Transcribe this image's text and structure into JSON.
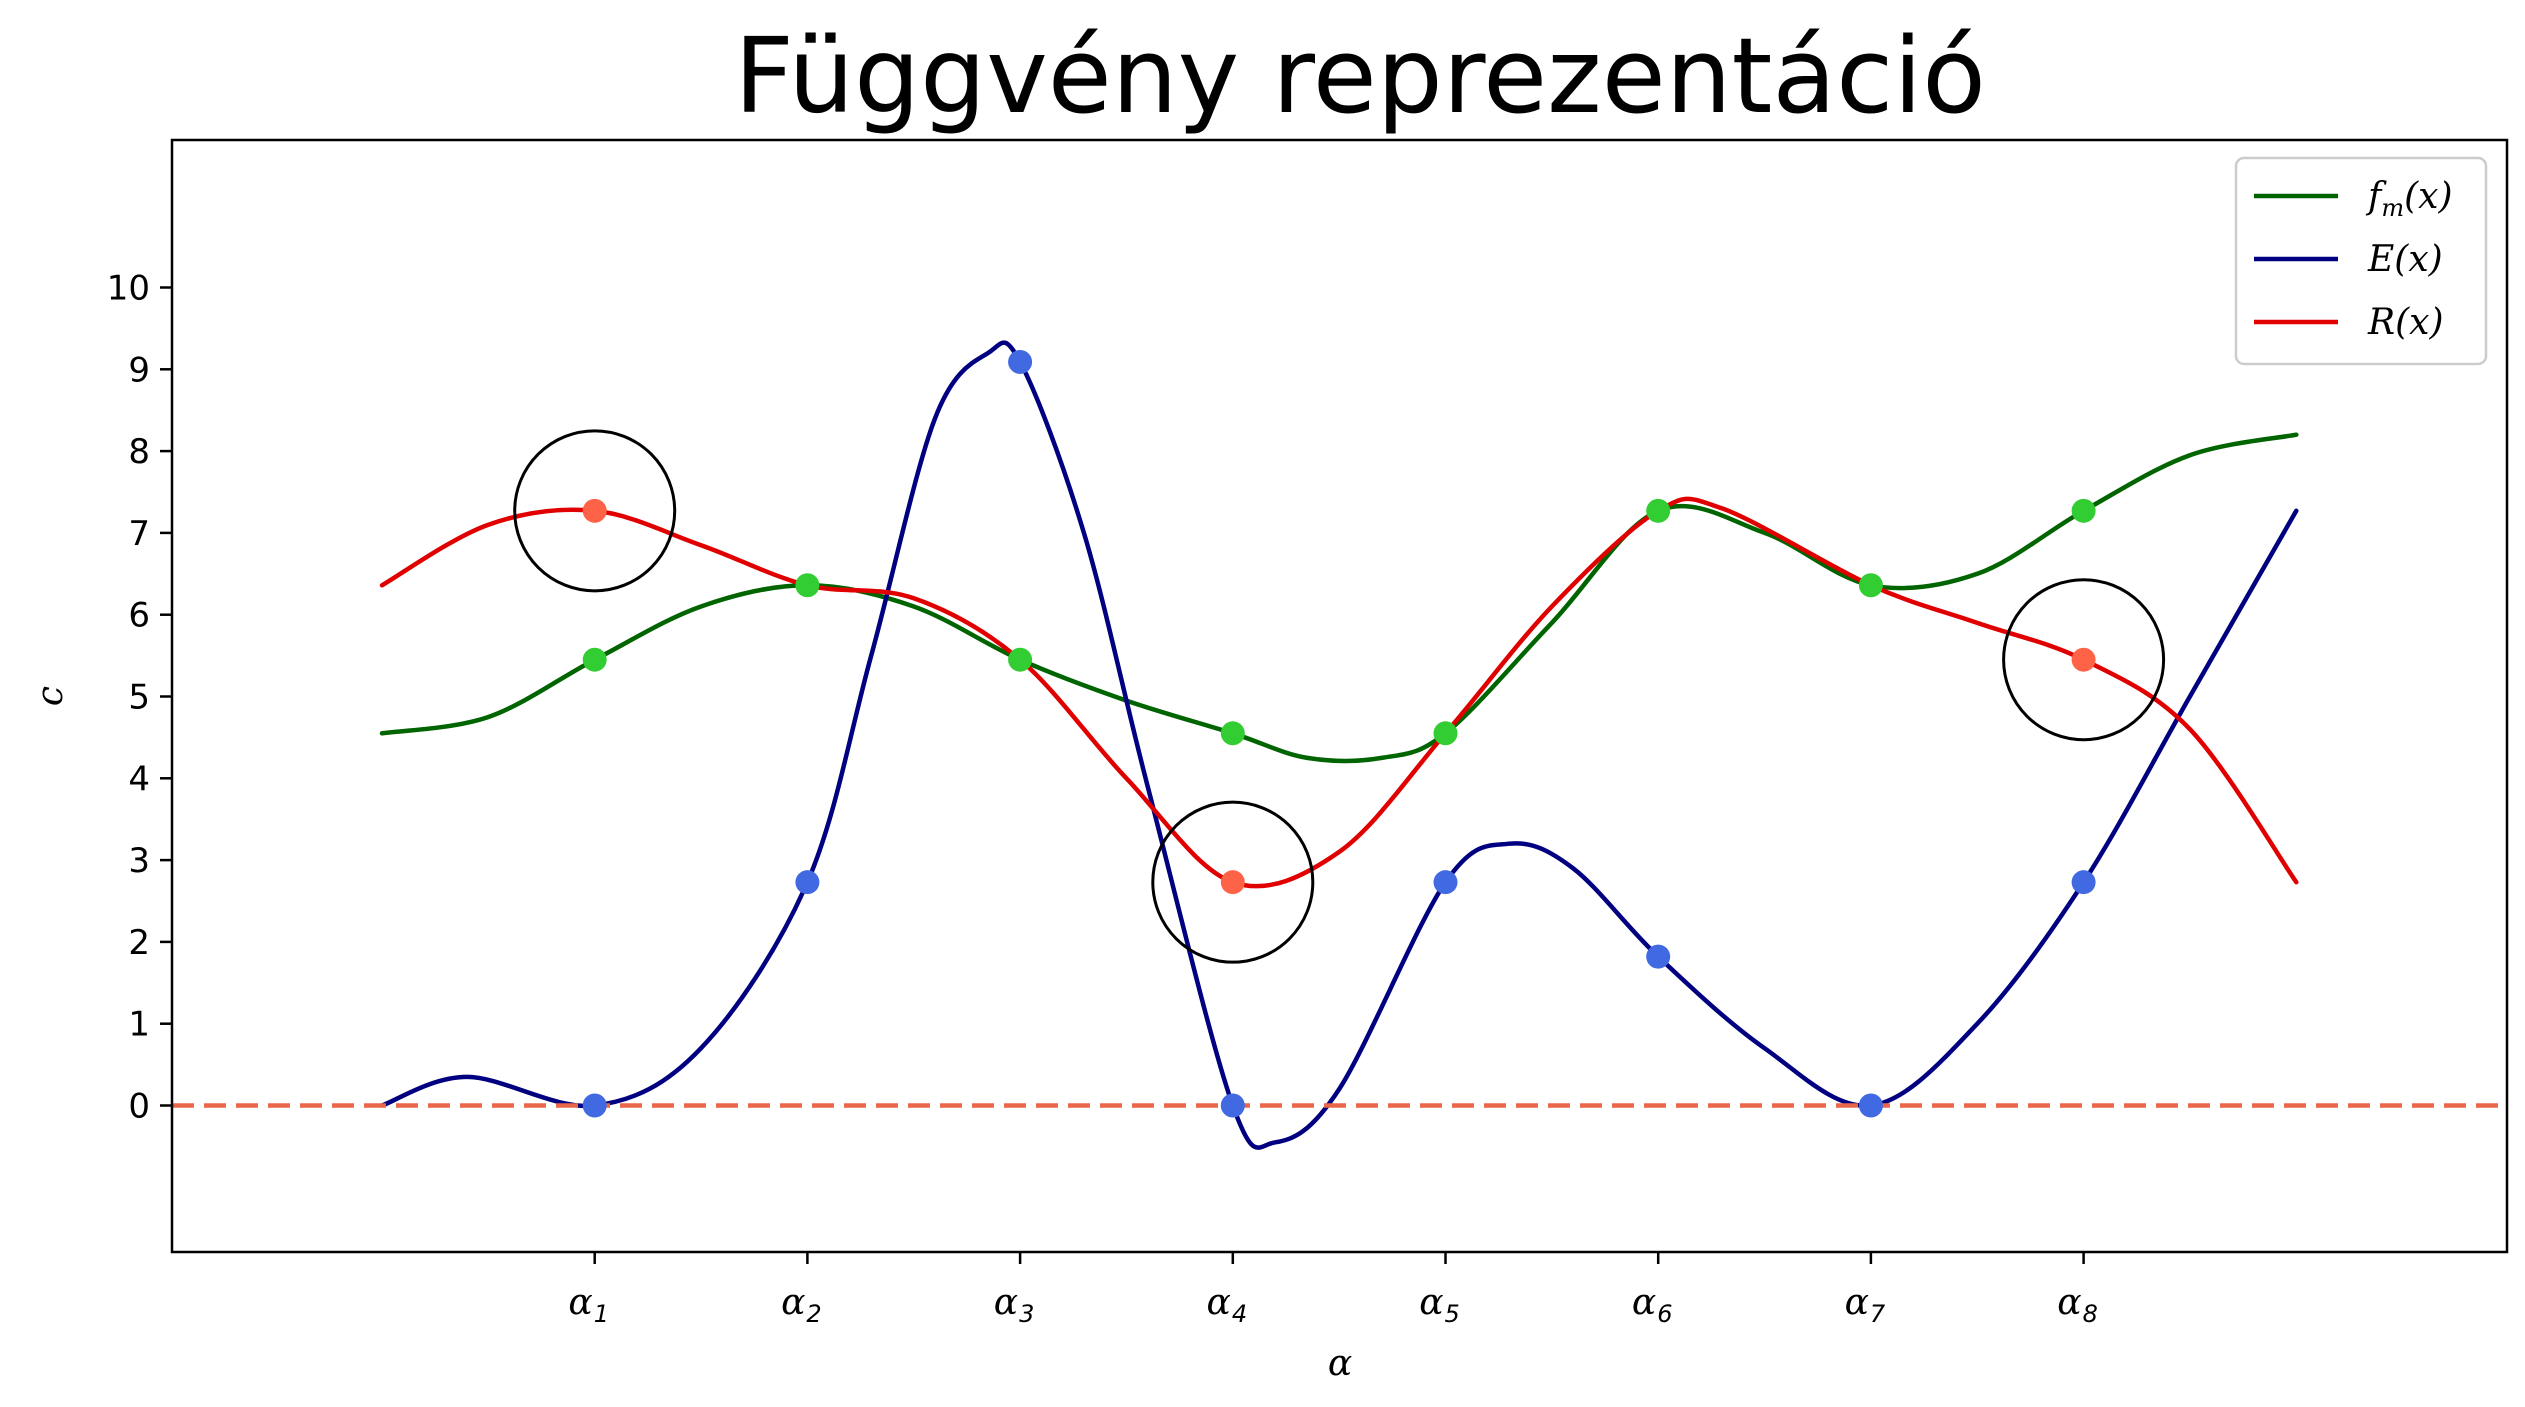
{
  "chart_data": {
    "type": "line",
    "title": "Függvény reprezentáció",
    "xlabel": "α",
    "ylabel": "c",
    "xlim": [
      0,
      10
    ],
    "ylim": [
      -1.8,
      11.8
    ],
    "xticks": [
      {
        "x": 1,
        "symbol": "α",
        "sub": "1"
      },
      {
        "x": 2,
        "symbol": "α",
        "sub": "2"
      },
      {
        "x": 3,
        "symbol": "α",
        "sub": "3"
      },
      {
        "x": 4,
        "symbol": "α",
        "sub": "4"
      },
      {
        "x": 5,
        "symbol": "α",
        "sub": "5"
      },
      {
        "x": 6,
        "symbol": "α",
        "sub": "6"
      },
      {
        "x": 7,
        "symbol": "α",
        "sub": "7"
      },
      {
        "x": 8,
        "symbol": "α",
        "sub": "8"
      }
    ],
    "yticks": [
      "0",
      "1",
      "2",
      "3",
      "4",
      "5",
      "6",
      "7",
      "8",
      "9",
      "10"
    ],
    "grid": false,
    "legend_position": "top-right",
    "series": [
      {
        "name": "f_m(x)",
        "label_main": "f",
        "label_sub": "m",
        "label_tail": "(x)",
        "color": "#006400",
        "marker_color": "#32cd32",
        "curve": [
          [
            0,
            4.55
          ],
          [
            0.5,
            4.75
          ],
          [
            1,
            5.45
          ],
          [
            1.5,
            6.1
          ],
          [
            2,
            6.36
          ],
          [
            2.5,
            6.1
          ],
          [
            3,
            5.45
          ],
          [
            3.5,
            4.95
          ],
          [
            4,
            4.55
          ],
          [
            4.35,
            4.25
          ],
          [
            4.7,
            4.25
          ],
          [
            5,
            4.55
          ],
          [
            5.5,
            5.9
          ],
          [
            6,
            7.27
          ],
          [
            6.5,
            7.0
          ],
          [
            7,
            6.36
          ],
          [
            7.5,
            6.5
          ],
          [
            8,
            7.27
          ],
          [
            8.5,
            7.95
          ],
          [
            9,
            8.2
          ]
        ],
        "markers": [
          [
            1,
            5.45
          ],
          [
            2,
            6.36
          ],
          [
            3,
            5.45
          ],
          [
            4,
            4.55
          ],
          [
            5,
            4.55
          ],
          [
            6,
            7.27
          ],
          [
            7,
            6.36
          ],
          [
            8,
            7.27
          ]
        ]
      },
      {
        "name": "E(x)",
        "label_main": "E",
        "label_sub": "",
        "label_tail": "(x)",
        "color": "#000080",
        "marker_color": "#4169e1",
        "curve": [
          [
            0,
            0
          ],
          [
            0.4,
            0.35
          ],
          [
            1,
            0
          ],
          [
            1.5,
            0.7
          ],
          [
            2,
            2.73
          ],
          [
            2.3,
            5.5
          ],
          [
            2.6,
            8.4
          ],
          [
            2.85,
            9.2
          ],
          [
            3,
            9.09
          ],
          [
            3.3,
            7.0
          ],
          [
            3.6,
            3.9
          ],
          [
            4,
            0
          ],
          [
            4.2,
            -0.45
          ],
          [
            4.5,
            0.2
          ],
          [
            5,
            2.73
          ],
          [
            5.3,
            3.2
          ],
          [
            5.6,
            2.9
          ],
          [
            6,
            1.82
          ],
          [
            6.5,
            0.7
          ],
          [
            7,
            0
          ],
          [
            7.5,
            1.0
          ],
          [
            8,
            2.73
          ],
          [
            8.5,
            5.0
          ],
          [
            9,
            7.27
          ]
        ],
        "markers": [
          [
            1,
            0
          ],
          [
            2,
            2.73
          ],
          [
            3,
            9.09
          ],
          [
            4,
            0
          ],
          [
            5,
            2.73
          ],
          [
            6,
            1.82
          ],
          [
            7,
            0
          ],
          [
            8,
            2.73
          ]
        ]
      },
      {
        "name": "R(x)",
        "label_main": "R",
        "label_sub": "",
        "label_tail": "(x)",
        "color": "#e00000",
        "marker_color": "#ff6347",
        "curve": [
          [
            0,
            6.36
          ],
          [
            0.5,
            7.1
          ],
          [
            1,
            7.27
          ],
          [
            1.5,
            6.85
          ],
          [
            2,
            6.36
          ],
          [
            2.5,
            6.2
          ],
          [
            3,
            5.45
          ],
          [
            3.5,
            4.0
          ],
          [
            4,
            2.73
          ],
          [
            4.5,
            3.1
          ],
          [
            5,
            4.55
          ],
          [
            5.5,
            6.1
          ],
          [
            6,
            7.27
          ],
          [
            6.3,
            7.3
          ],
          [
            7,
            6.36
          ],
          [
            7.5,
            5.9
          ],
          [
            8,
            5.45
          ],
          [
            8.5,
            4.6
          ],
          [
            9,
            2.73
          ]
        ],
        "markers": [
          [
            1,
            7.27
          ],
          [
            4,
            2.73
          ],
          [
            8,
            5.45
          ]
        ]
      }
    ],
    "reference_line": {
      "y": 0,
      "color": "#e8664a",
      "style": "dashed"
    },
    "highlight_circles": [
      {
        "x": 1,
        "y": 7.27
      },
      {
        "x": 4,
        "y": 2.73
      },
      {
        "x": 8,
        "y": 5.45
      }
    ]
  }
}
